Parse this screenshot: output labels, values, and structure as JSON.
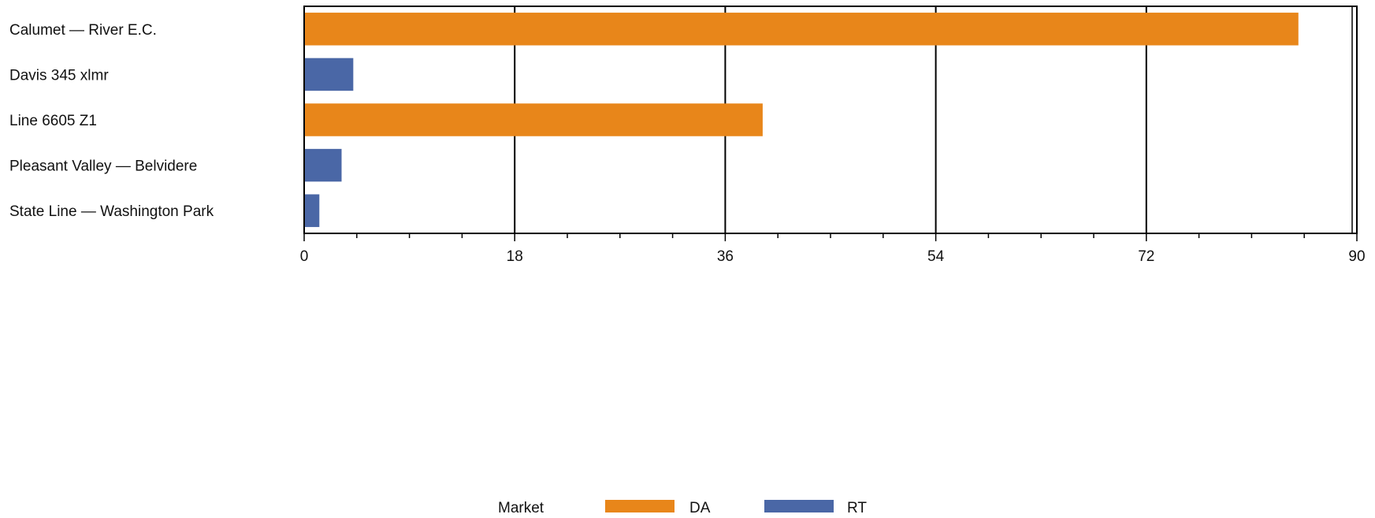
{
  "chart_data": {
    "type": "bar",
    "orientation": "horizontal",
    "categories": [
      "Calumet  —  River  E.C.",
      "Davis  345    xlmr",
      "Line  6605  Z1",
      "Pleasant  Valley  —  Belvidere",
      "State  Line  —  Washington  Park"
    ],
    "values": [
      85,
      4.2,
      39.2,
      3.2,
      1.3
    ],
    "bar_market": [
      "DA",
      "RT",
      "DA",
      "RT",
      "RT"
    ],
    "xticks": [
      0,
      18,
      36,
      54,
      72,
      90
    ],
    "xtick_labels": [
      "0",
      "18",
      "36",
      "54",
      "72",
      "90"
    ],
    "xlim": [
      0,
      90
    ],
    "grid": true,
    "title": "",
    "xlabel": "",
    "ylabel": "",
    "legend": {
      "title": "Market",
      "placement": "bottom-center",
      "entries": [
        {
          "name": "DA",
          "color": "#e8861a"
        },
        {
          "name": "RT",
          "color": "#4a67a6"
        }
      ]
    }
  }
}
